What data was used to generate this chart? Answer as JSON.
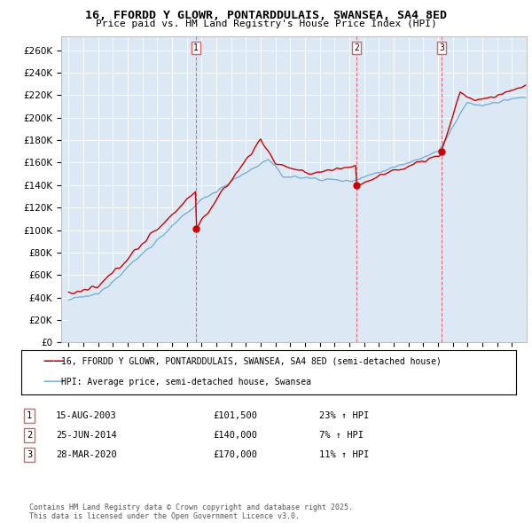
{
  "title1": "16, FFORDD Y GLOWR, PONTARDDULAIS, SWANSEA, SA4 8ED",
  "title2": "Price paid vs. HM Land Registry's House Price Index (HPI)",
  "legend_line1": "16, FFORDD Y GLOWR, PONTARDDULAIS, SWANSEA, SA4 8ED (semi-detached house)",
  "legend_line2": "HPI: Average price, semi-detached house, Swansea",
  "transactions": [
    {
      "num": 1,
      "date": "15-AUG-2003",
      "price": 101500,
      "hpi_pct": "23% ↑ HPI",
      "year": 2003.62
    },
    {
      "num": 2,
      "date": "25-JUN-2014",
      "price": 140000,
      "hpi_pct": "7% ↑ HPI",
      "year": 2014.48
    },
    {
      "num": 3,
      "date": "28-MAR-2020",
      "price": 170000,
      "hpi_pct": "11% ↑ HPI",
      "year": 2020.24
    }
  ],
  "property_color": "#cc0000",
  "hpi_color": "#7bafd4",
  "hpi_fill": "#dce9f5",
  "vline_color": "#e06060",
  "background_color": "#dce9f5",
  "fig_bg": "#ffffff",
  "ylim": [
    0,
    270000
  ],
  "ytick_max": 260000,
  "xlim_start": 1994.5,
  "xlim_end": 2026.0,
  "footer": "Contains HM Land Registry data © Crown copyright and database right 2025.\nThis data is licensed under the Open Government Licence v3.0."
}
